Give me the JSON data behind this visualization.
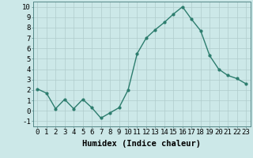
{
  "x": [
    0,
    1,
    2,
    3,
    4,
    5,
    6,
    7,
    8,
    9,
    10,
    11,
    12,
    13,
    14,
    15,
    16,
    17,
    18,
    19,
    20,
    21,
    22,
    23
  ],
  "y": [
    2.1,
    1.7,
    0.2,
    1.1,
    0.2,
    1.1,
    0.3,
    -0.7,
    -0.2,
    0.3,
    2.0,
    5.5,
    7.0,
    7.8,
    8.5,
    9.3,
    10.0,
    8.8,
    7.7,
    5.3,
    4.0,
    3.4,
    3.1,
    2.6
  ],
  "line_color": "#2d7d6e",
  "marker": "o",
  "markersize": 2.0,
  "linewidth": 1.0,
  "bg_color": "#cce8e8",
  "grid_color": "#b0cccc",
  "xlabel": "Humidex (Indice chaleur)",
  "xlim": [
    -0.5,
    23.5
  ],
  "ylim": [
    -1.5,
    10.5
  ],
  "yticks": [
    -1,
    0,
    1,
    2,
    3,
    4,
    5,
    6,
    7,
    8,
    9,
    10
  ],
  "xticks": [
    0,
    1,
    2,
    3,
    4,
    5,
    6,
    7,
    8,
    9,
    10,
    11,
    12,
    13,
    14,
    15,
    16,
    17,
    18,
    19,
    20,
    21,
    22,
    23
  ],
  "xlabel_fontsize": 7.5,
  "tick_fontsize": 6.5
}
